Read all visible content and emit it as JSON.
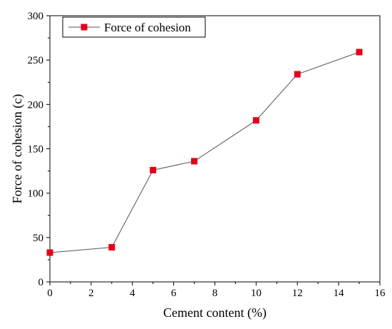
{
  "chart_data": {
    "type": "line",
    "title": "",
    "xlabel": "Cement content (%)",
    "ylabel": "Force of cohesion (c)",
    "xlim": [
      0,
      16
    ],
    "ylim": [
      0,
      300
    ],
    "xticks": [
      0,
      2,
      4,
      6,
      8,
      10,
      12,
      14,
      16
    ],
    "yticks": [
      0,
      50,
      100,
      150,
      200,
      250,
      300
    ],
    "grid": false,
    "legend_position": "top-left",
    "series": [
      {
        "name": "Force of cohesion",
        "color": "#e3001b",
        "line_color": "#555555",
        "marker": "square",
        "x": [
          0,
          3,
          5,
          7,
          10,
          12,
          15
        ],
        "y": [
          33,
          39,
          126,
          136,
          182,
          234,
          259
        ]
      }
    ]
  }
}
